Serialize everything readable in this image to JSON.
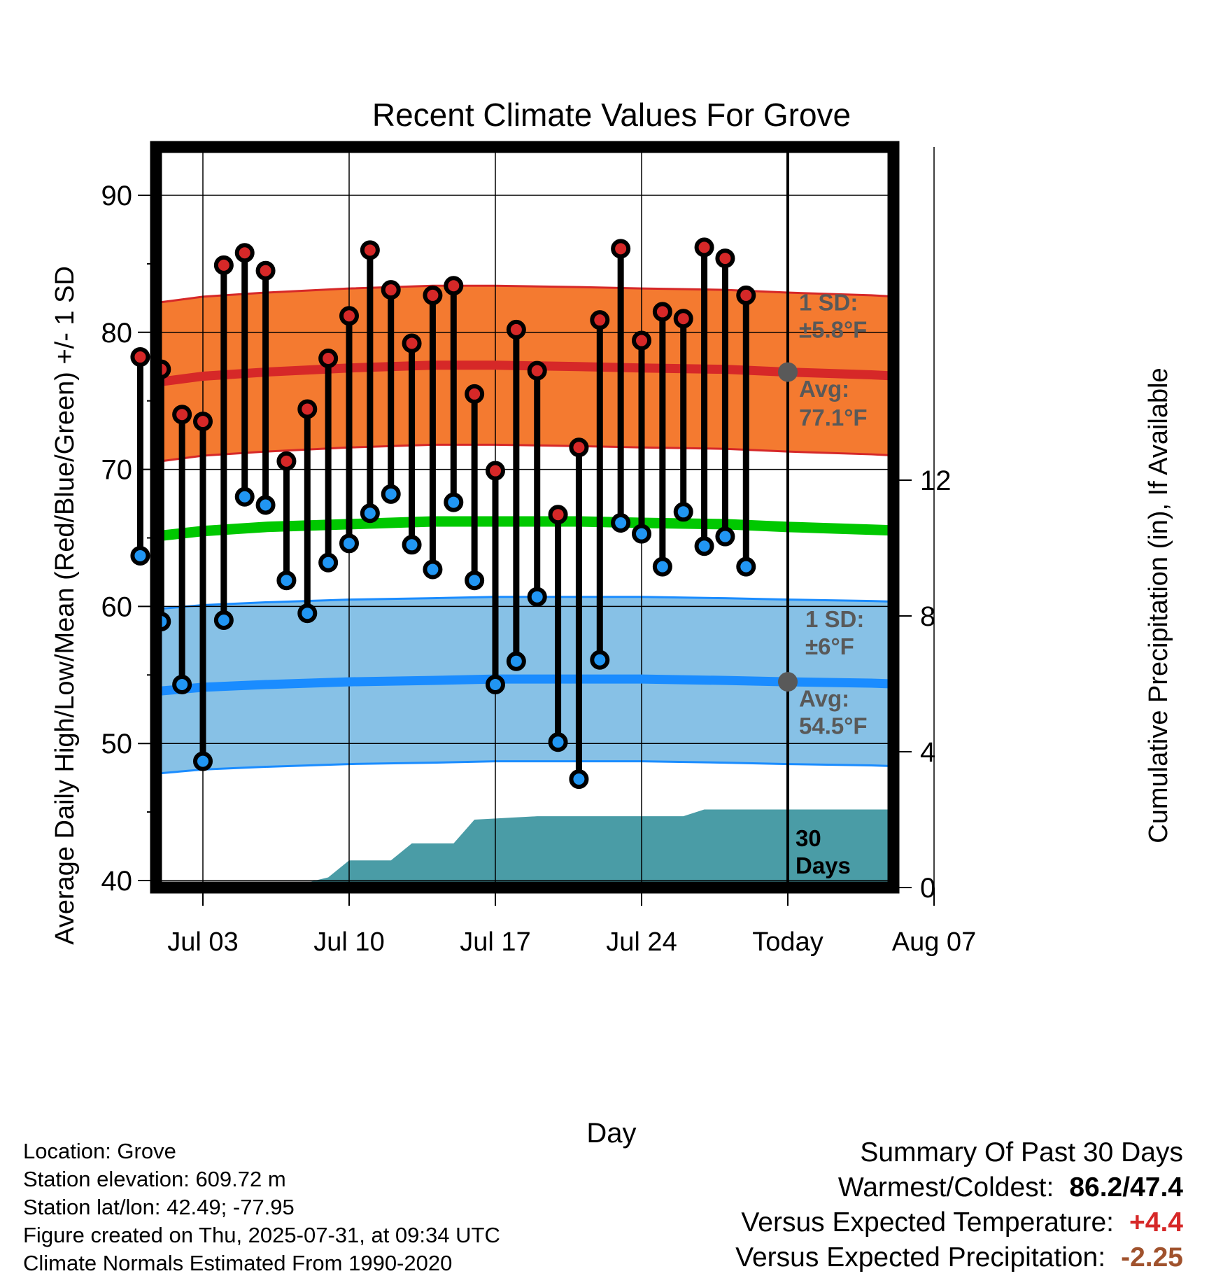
{
  "colors": {
    "high_band": "#f47a30",
    "high_avg": "#d62828",
    "low_band": "#87c1e6",
    "low_avg": "#1a8cff",
    "mean_line": "#00c800",
    "precip": "#4a9ca6",
    "high_dot": "#d62828",
    "low_dot": "#2196f3",
    "annotation": "#595959",
    "temp_anomaly": "#d62828",
    "precip_anomaly": "#a0522d"
  },
  "chart_data": {
    "type": "line",
    "title": "Recent Climate Values For Grove",
    "xlabel": "Day",
    "ylabel": "Average Daily High/Low/Mean (Red/Blue/Green) +/- 1 SD",
    "y2label": "Cumulative Precipitation (in), If Available",
    "ylim": [
      40,
      91.5
    ],
    "y2lim": [
      0,
      16.3
    ],
    "xlim": [
      -0.5,
      41.5
    ],
    "yticks": [
      40,
      50,
      60,
      70,
      80,
      90
    ],
    "y2ticks": [
      0,
      4,
      8,
      12
    ],
    "xtick_labels": [
      {
        "x": 3,
        "label": "Jul 03"
      },
      {
        "x": 10,
        "label": "Jul 10"
      },
      {
        "x": 17,
        "label": "Jul 17"
      },
      {
        "x": 24,
        "label": "Jul 24"
      },
      {
        "x": 31,
        "label": "Today"
      },
      {
        "x": 38,
        "label": "Aug 07"
      }
    ],
    "today_x": 31,
    "grid": true,
    "days": [
      "Jul 01",
      "Jul 02",
      "Jul 03",
      "Jul 04",
      "Jul 05",
      "Jul 06",
      "Jul 07",
      "Jul 08",
      "Jul 09",
      "Jul 10",
      "Jul 11",
      "Jul 12",
      "Jul 13",
      "Jul 14",
      "Jul 15",
      "Jul 16",
      "Jul 17",
      "Jul 18",
      "Jul 19",
      "Jul 20",
      "Jul 21",
      "Jul 22",
      "Jul 23",
      "Jul 24",
      "Jul 25",
      "Jul 26",
      "Jul 27",
      "Jul 28",
      "Jul 29",
      "Jul 30"
    ],
    "observed_high": [
      78.2,
      77.3,
      74.0,
      73.5,
      84.9,
      85.8,
      84.5,
      70.6,
      74.4,
      78.1,
      81.2,
      86.0,
      83.1,
      79.2,
      82.7,
      83.4,
      75.5,
      69.9,
      80.2,
      77.2,
      66.7,
      71.6,
      80.9,
      86.1,
      79.4,
      81.5,
      81.0,
      86.2,
      85.4,
      82.7
    ],
    "observed_low": [
      63.7,
      58.9,
      54.3,
      48.7,
      59.0,
      68.0,
      67.4,
      61.9,
      59.5,
      63.2,
      64.6,
      66.8,
      68.2,
      64.5,
      62.7,
      67.6,
      61.9,
      54.3,
      56.0,
      60.7,
      50.1,
      47.4,
      56.1,
      66.1,
      65.3,
      62.9,
      66.9,
      64.4,
      65.1,
      62.9
    ],
    "normals": {
      "x": [
        0,
        3,
        6,
        10,
        14,
        17,
        21,
        24,
        28,
        31,
        35,
        39,
        41
      ],
      "high_avg": [
        76.2,
        76.8,
        77.1,
        77.4,
        77.6,
        77.6,
        77.5,
        77.4,
        77.3,
        77.1,
        76.9,
        76.6,
        76.4
      ],
      "low_avg": [
        53.7,
        54.1,
        54.3,
        54.5,
        54.6,
        54.7,
        54.7,
        54.7,
        54.6,
        54.5,
        54.4,
        54.2,
        54.0
      ],
      "mean_avg": [
        65.0,
        65.5,
        65.8,
        66.0,
        66.2,
        66.2,
        66.2,
        66.1,
        66.0,
        65.8,
        65.6,
        65.4,
        65.2
      ],
      "high_sd": 5.8,
      "low_sd": 6.0
    },
    "precip": {
      "x": [
        0,
        7,
        8,
        9,
        10,
        12,
        13,
        15,
        16,
        19,
        26,
        27,
        41
      ],
      "cumulative": [
        0,
        0,
        0.15,
        0.3,
        0.8,
        0.8,
        1.3,
        1.3,
        2.0,
        2.1,
        2.1,
        2.3,
        2.3
      ]
    },
    "annotations": {
      "high_sd_line1": "1 SD:",
      "high_sd_line2": "±5.8°F",
      "high_avg_line1": "Avg:",
      "high_avg_line2": "77.1°F",
      "low_sd_line1": "1 SD:",
      "low_sd_line2": "±6°F",
      "low_avg_line1": "Avg:",
      "low_avg_line2": "54.5°F",
      "period_line1": "30",
      "period_line2": "Days"
    }
  },
  "info": {
    "location": "Location: Grove",
    "elevation": "Station elevation: 609.72 m",
    "latlon": "Station lat/lon: 42.49; -77.95",
    "created": "Figure created on Thu, 2025-07-31, at 09:34 UTC",
    "normals": "Climate Normals Estimated From 1990-2020"
  },
  "summary": {
    "heading": "Summary Of Past 30 Days",
    "warmest_coldest_label": "Warmest/Coldest:",
    "warmest_coldest_value": "86.2/47.4",
    "temp_label": "Versus Expected Temperature:",
    "temp_value": "+4.4",
    "precip_label": "Versus Expected Precipitation:",
    "precip_value": "-2.25"
  }
}
